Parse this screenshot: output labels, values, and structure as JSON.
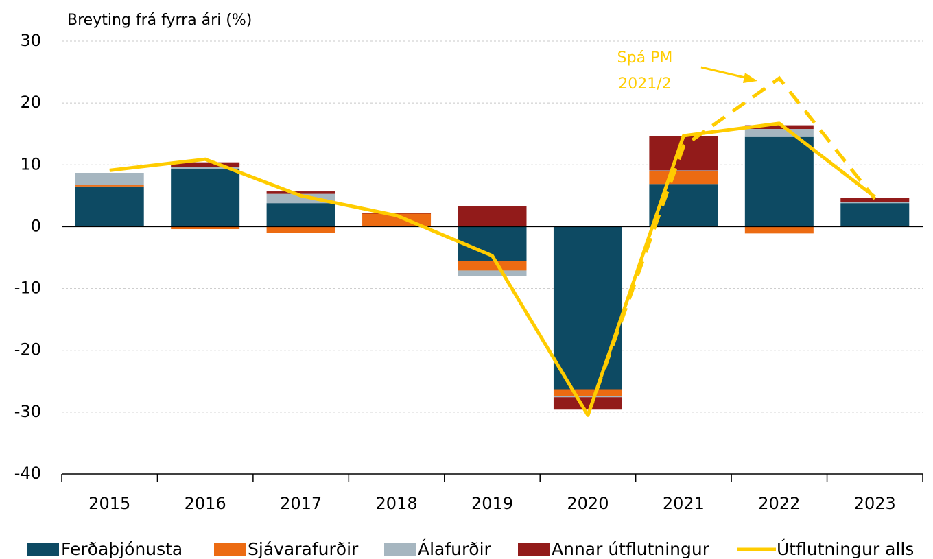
{
  "chart_data": {
    "type": "bar",
    "stacked": true,
    "y_label": "Breyting frá fyrra ári (%)",
    "categories": [
      "2015",
      "2016",
      "2017",
      "2018",
      "2019",
      "2020",
      "2021",
      "2022",
      "2023"
    ],
    "series": [
      {
        "name": "Ferðaþjónusta",
        "color": "#0d4a63",
        "values": [
          6.5,
          9.3,
          3.8,
          0,
          -5.5,
          -26.3,
          6.9,
          14.5,
          3.8
        ]
      },
      {
        "name": "Sjávarafurðir",
        "color": "#ec6b12",
        "values": [
          0.2,
          -0.4,
          -1.0,
          2.1,
          -1.6,
          -1.1,
          2.1,
          -1.1,
          0
        ]
      },
      {
        "name": "Álafurðir",
        "color": "#a6b6c0",
        "values": [
          2.0,
          0.3,
          1.5,
          0,
          -0.9,
          -0.2,
          0.1,
          1.3,
          0.2
        ]
      },
      {
        "name": "Annar útflutningur",
        "color": "#921b1a",
        "values": [
          0,
          0.8,
          0.4,
          0.1,
          3.3,
          -2.0,
          5.5,
          0.6,
          0.6
        ]
      },
      {
        "name": "Útflutningur alls",
        "color": "#ffcc00",
        "type": "line",
        "values": [
          9.1,
          10.9,
          5.0,
          1.8,
          -4.7,
          -30.5,
          14.7,
          16.7,
          4.8
        ]
      }
    ],
    "forecast": {
      "color": "#ffcc00",
      "dashed": true,
      "values": [
        null,
        null,
        null,
        null,
        null,
        -30.5,
        13.0,
        24.0,
        4.5
      ]
    },
    "annotation": [
      "Spá PM",
      "2021/2"
    ],
    "ylim": [
      -40,
      30
    ],
    "yticks": [
      30,
      20,
      10,
      0,
      -10,
      -20,
      -30,
      -40
    ],
    "grid": true
  }
}
